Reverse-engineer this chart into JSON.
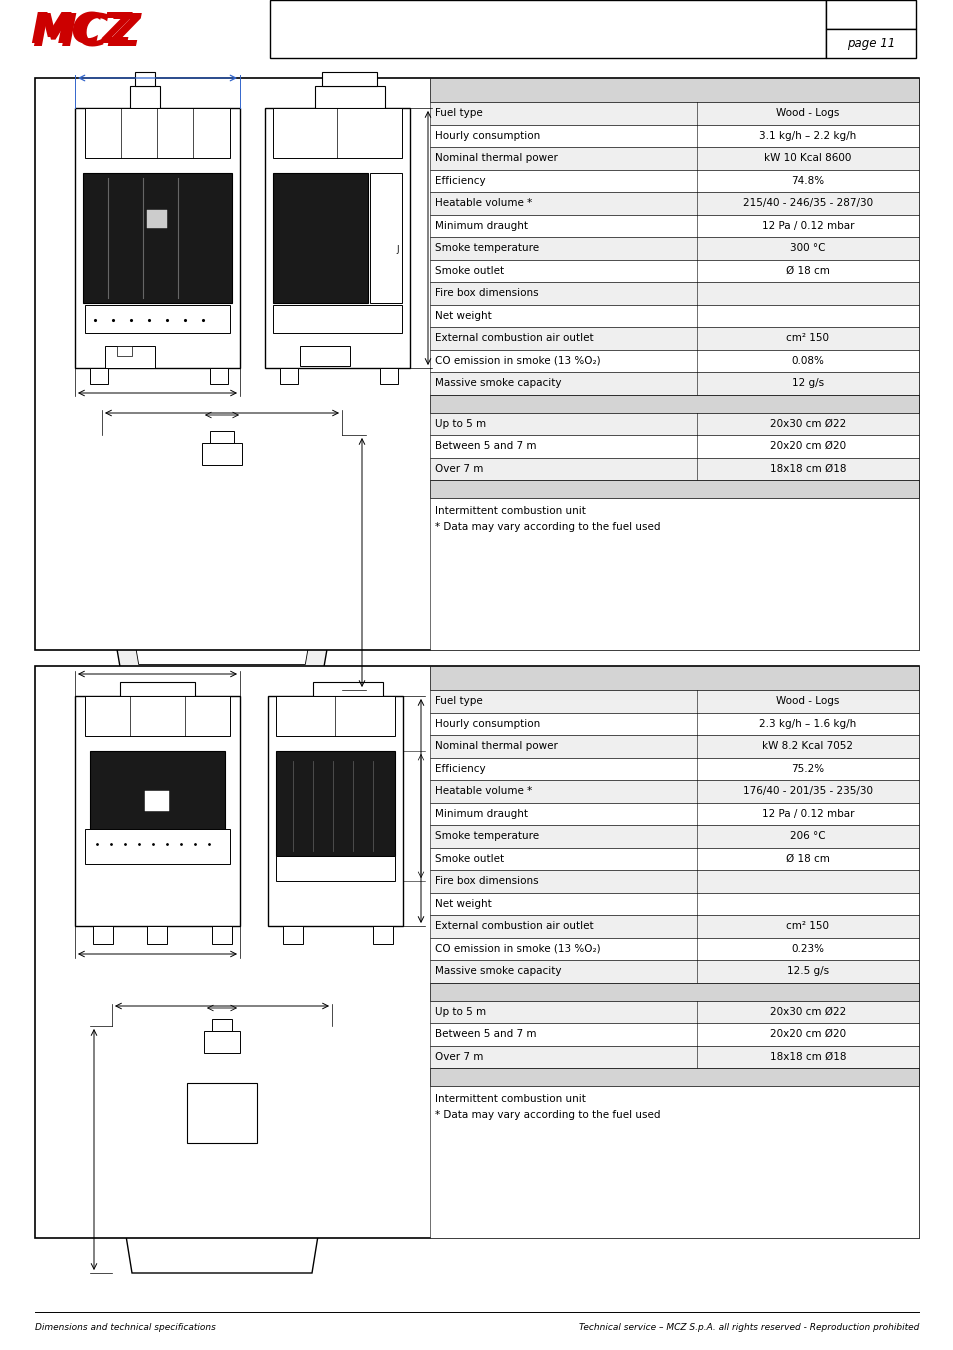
{
  "bg_color": "#ffffff",
  "header_bg": "#d4d4d4",
  "row_alt_bg": "#efefef",
  "row_white_bg": "#ffffff",
  "page_text": "page 11",
  "footer_left": "Dimensions and technical specifications",
  "footer_right": "Technical service – MCZ S.p.A. all rights reserved - Reproduction prohibited",
  "table1": {
    "rows": [
      [
        "Fuel type",
        "Wood - Logs"
      ],
      [
        "Hourly consumption",
        "2.3 kg/h – 1.6 kg/h"
      ],
      [
        "Nominal thermal power",
        "kW 8.2 Kcal 7052"
      ],
      [
        "Efficiency",
        "75.2%"
      ],
      [
        "Heatable volume *",
        "176/40 - 201/35 - 235/30"
      ],
      [
        "Minimum draught",
        "12 Pa / 0.12 mbar"
      ],
      [
        "Smoke temperature",
        "206 °C"
      ],
      [
        "Smoke outlet",
        "Ø 18 cm"
      ],
      [
        "Fire box dimensions",
        ""
      ],
      [
        "Net weight",
        ""
      ],
      [
        "External combustion air outlet",
        "cm² 150"
      ],
      [
        "CO emission in smoke (13 %O₂)",
        "0.23%"
      ],
      [
        "Massive smoke capacity",
        "12.5 g/s"
      ]
    ],
    "flue_rows": [
      [
        "Up to 5 m",
        "20x30 cm Ø22"
      ],
      [
        "Between 5 and 7 m",
        "20x20 cm Ø20"
      ],
      [
        "Over 7 m",
        "18x18 cm Ø18"
      ]
    ],
    "notes": [
      "Intermittent combustion unit",
      "* Data may vary according to the fuel used"
    ]
  },
  "table2": {
    "rows": [
      [
        "Fuel type",
        "Wood - Logs"
      ],
      [
        "Hourly consumption",
        "3.1 kg/h – 2.2 kg/h"
      ],
      [
        "Nominal thermal power",
        "kW 10 Kcal 8600"
      ],
      [
        "Efficiency",
        "74.8%"
      ],
      [
        "Heatable volume *",
        "215/40 - 246/35 - 287/30"
      ],
      [
        "Minimum draught",
        "12 Pa / 0.12 mbar"
      ],
      [
        "Smoke temperature",
        "300 °C"
      ],
      [
        "Smoke outlet",
        "Ø 18 cm"
      ],
      [
        "Fire box dimensions",
        ""
      ],
      [
        "Net weight",
        ""
      ],
      [
        "External combustion air outlet",
        "cm² 150"
      ],
      [
        "CO emission in smoke (13 %O₂)",
        "0.08%"
      ],
      [
        "Massive smoke capacity",
        "12 g/s"
      ]
    ],
    "flue_rows": [
      [
        "Up to 5 m",
        "20x30 cm Ø22"
      ],
      [
        "Between 5 and 7 m",
        "20x20 cm Ø20"
      ],
      [
        "Over 7 m",
        "18x18 cm Ø18"
      ]
    ],
    "notes": [
      "Intermittent combustion unit",
      "* Data may vary according to the fuel used"
    ]
  },
  "logo_color": "#cc0000",
  "blue_line_color": "#3366cc"
}
